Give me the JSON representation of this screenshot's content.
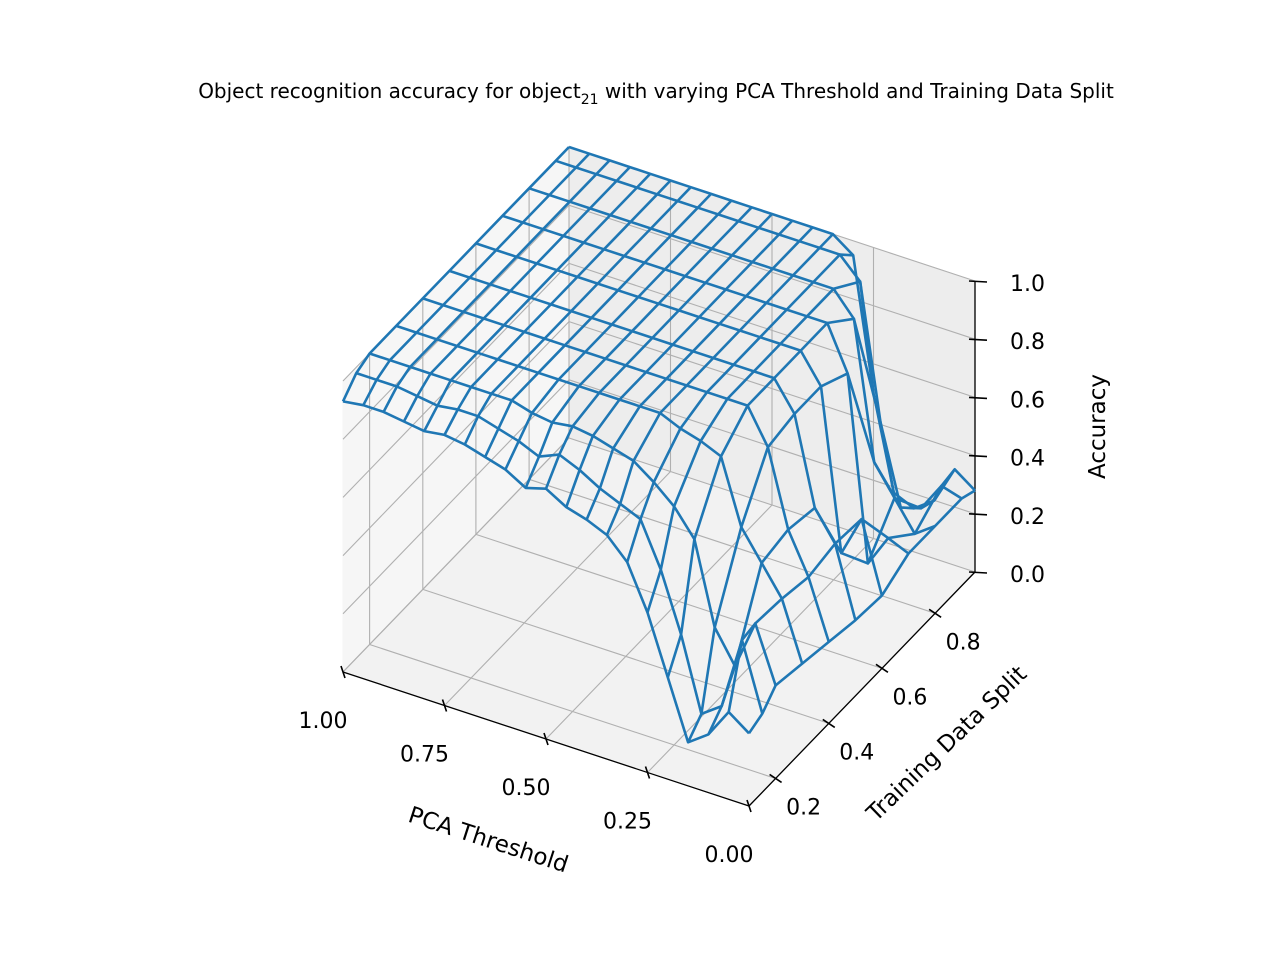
{
  "chart_data": {
    "type": "wireframe3d",
    "title_main": "Object recognition accuracy for object",
    "title_sub": "21",
    "title_rest": " with varying PCA Threshold and Training Data Split",
    "xlabel": "PCA Threshold",
    "ylabel": "Training Data Split",
    "zlabel": "Accuracy",
    "xlim": [
      0.0,
      1.0
    ],
    "ylim": [
      0.1,
      0.95
    ],
    "zlim": [
      0.0,
      1.0
    ],
    "x_ticks": [
      1.0,
      0.75,
      0.5,
      0.25,
      0.0
    ],
    "x_tick_labels": [
      "1.00",
      "0.75",
      "0.50",
      "0.25",
      "0.00"
    ],
    "y_ticks": [
      0.2,
      0.4,
      0.6,
      0.8
    ],
    "y_tick_labels": [
      "0.2",
      "0.4",
      "0.6",
      "0.8"
    ],
    "z_ticks": [
      0.0,
      0.2,
      0.4,
      0.6,
      0.8,
      1.0
    ],
    "z_tick_labels": [
      "0.0",
      "0.2",
      "0.4",
      "0.6",
      "0.8",
      "1.0"
    ],
    "grid": true,
    "series_color": "#1f77b4",
    "pane_color": "#f2f2f2",
    "pca_thresholds": [
      0.0,
      0.05,
      0.1,
      0.15,
      0.2,
      0.25,
      0.3,
      0.35,
      0.4,
      0.45,
      0.5,
      0.55,
      0.6,
      0.65,
      0.7,
      0.75,
      0.8,
      0.85,
      0.9,
      0.95,
      1.0
    ],
    "train_splits": [
      0.1,
      0.15,
      0.2,
      0.3,
      0.4,
      0.5,
      0.6,
      0.7,
      0.8,
      0.9,
      0.95
    ],
    "accuracy": [
      [
        0.25,
        0.27,
        0.32,
        0.3,
        0.28,
        0.26,
        0.25,
        0.3,
        0.3,
        0.3,
        0.28
      ],
      [
        0.3,
        0.5,
        0.51,
        0.5,
        0.48,
        0.5,
        0.49,
        0.33,
        0.25,
        0.32,
        0.33
      ],
      [
        0.2,
        0.25,
        0.34,
        0.6,
        0.62,
        0.6,
        0.35,
        0.22,
        0.35,
        0.22,
        0.2
      ],
      [
        0.15,
        0.2,
        0.45,
        0.7,
        0.88,
        0.9,
        0.9,
        0.85,
        0.45,
        0.2,
        0.15
      ],
      [
        0.35,
        0.45,
        0.73,
        0.92,
        1.0,
        1.0,
        1.0,
        1.0,
        0.92,
        0.47,
        0.18
      ],
      [
        0.55,
        0.65,
        0.82,
        0.95,
        1.0,
        1.0,
        1.0,
        1.0,
        1.0,
        0.93,
        0.5
      ],
      [
        0.7,
        0.8,
        0.88,
        0.97,
        1.0,
        1.0,
        1.0,
        1.0,
        1.0,
        1.0,
        0.95
      ],
      [
        0.77,
        0.83,
        0.93,
        1.0,
        1.0,
        1.0,
        1.0,
        1.0,
        1.0,
        1.0,
        1.0
      ],
      [
        0.8,
        0.86,
        0.95,
        1.0,
        1.0,
        1.0,
        1.0,
        1.0,
        1.0,
        1.0,
        1.0
      ],
      [
        0.82,
        0.9,
        0.97,
        1.0,
        1.0,
        1.0,
        1.0,
        1.0,
        1.0,
        1.0,
        1.0
      ],
      [
        0.86,
        0.93,
        0.98,
        1.0,
        1.0,
        1.0,
        1.0,
        1.0,
        1.0,
        1.0,
        1.0
      ],
      [
        0.84,
        0.9,
        0.97,
        1.0,
        1.0,
        1.0,
        1.0,
        1.0,
        1.0,
        1.0,
        1.0
      ],
      [
        0.88,
        0.93,
        0.98,
        1.0,
        1.0,
        1.0,
        1.0,
        1.0,
        1.0,
        1.0,
        1.0
      ],
      [
        0.9,
        0.95,
        1.0,
        1.0,
        1.0,
        1.0,
        1.0,
        1.0,
        1.0,
        1.0,
        1.0
      ],
      [
        0.92,
        0.97,
        1.0,
        1.0,
        1.0,
        1.0,
        1.0,
        1.0,
        1.0,
        1.0,
        1.0
      ],
      [
        0.93,
        0.97,
        1.0,
        1.0,
        1.0,
        1.0,
        1.0,
        1.0,
        1.0,
        1.0,
        1.0
      ],
      [
        0.92,
        0.96,
        1.0,
        1.0,
        1.0,
        1.0,
        1.0,
        1.0,
        1.0,
        1.0,
        1.0
      ],
      [
        0.93,
        0.97,
        1.0,
        1.0,
        1.0,
        1.0,
        1.0,
        1.0,
        1.0,
        1.0,
        1.0
      ],
      [
        0.94,
        0.98,
        1.0,
        1.0,
        1.0,
        1.0,
        1.0,
        1.0,
        1.0,
        1.0,
        1.0
      ],
      [
        0.94,
        0.98,
        1.0,
        1.0,
        1.0,
        1.0,
        1.0,
        1.0,
        1.0,
        1.0,
        1.0
      ],
      [
        0.93,
        0.98,
        1.0,
        1.0,
        1.0,
        1.0,
        1.0,
        1.0,
        1.0,
        1.0,
        1.0
      ]
    ]
  }
}
